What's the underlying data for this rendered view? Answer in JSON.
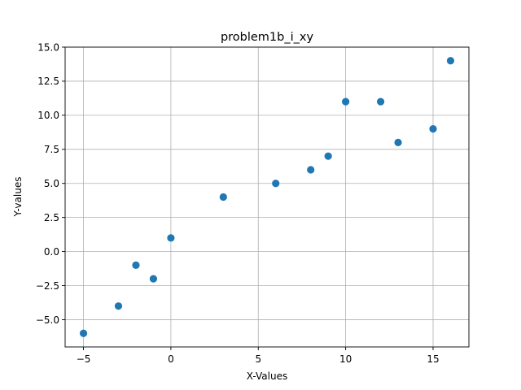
{
  "chart_data": {
    "type": "scatter",
    "title": "problem1b_i_xy",
    "xlabel": "X-Values",
    "ylabel": "Y-values",
    "xlim": [
      -6.05,
      17.05
    ],
    "ylim": [
      -7.0,
      15.0
    ],
    "grid": true,
    "x_ticks": [
      -5,
      0,
      5,
      10,
      15
    ],
    "x_tick_labels": [
      "−5",
      "0",
      "5",
      "10",
      "15"
    ],
    "y_ticks": [
      -5.0,
      -2.5,
      0.0,
      2.5,
      5.0,
      7.5,
      10.0,
      12.5,
      15.0
    ],
    "y_tick_labels": [
      "−5.0",
      "−2.5",
      "0.0",
      "2.5",
      "5.0",
      "7.5",
      "10.0",
      "12.5",
      "15.0"
    ],
    "series": [
      {
        "color": "#1f77b4",
        "points": [
          {
            "x": -5,
            "y": -6
          },
          {
            "x": -3,
            "y": -4
          },
          {
            "x": -2,
            "y": -1
          },
          {
            "x": -1,
            "y": -2
          },
          {
            "x": 0,
            "y": 1
          },
          {
            "x": 3,
            "y": 4
          },
          {
            "x": 6,
            "y": 5
          },
          {
            "x": 8,
            "y": 6
          },
          {
            "x": 9,
            "y": 7
          },
          {
            "x": 10,
            "y": 11
          },
          {
            "x": 12,
            "y": 11
          },
          {
            "x": 13,
            "y": 8
          },
          {
            "x": 15,
            "y": 9
          },
          {
            "x": 16,
            "y": 14
          }
        ]
      }
    ],
    "colors": {
      "grid": "#b0b0b0",
      "axes": "#000000",
      "background": "#ffffff"
    }
  }
}
